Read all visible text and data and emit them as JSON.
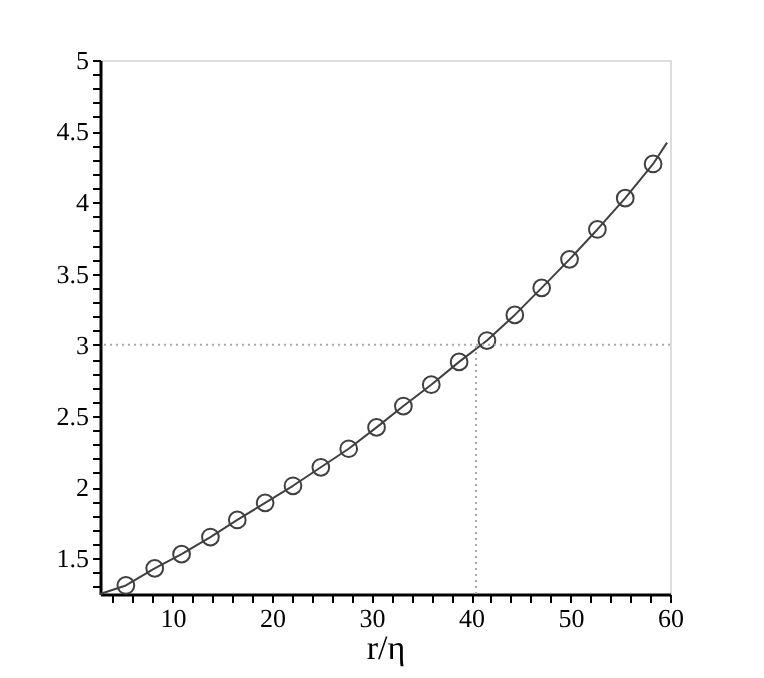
{
  "chart_data": {
    "type": "line",
    "xlabel": "r/η",
    "xlim": [
      2.7,
      60
    ],
    "ylim": [
      1.25,
      5
    ],
    "xticks": [
      {
        "value": 4,
        "label": null
      },
      {
        "value": 6,
        "label": null
      },
      {
        "value": 8,
        "label": null
      },
      10,
      {
        "value": 12,
        "label": null
      },
      {
        "value": 14,
        "label": null
      },
      {
        "value": 16,
        "label": null
      },
      {
        "value": 18,
        "label": null
      },
      20,
      {
        "value": 22,
        "label": null
      },
      {
        "value": 24,
        "label": null
      },
      {
        "value": 26,
        "label": null
      },
      {
        "value": 28,
        "label": null
      },
      30,
      {
        "value": 32,
        "label": null
      },
      {
        "value": 34,
        "label": null
      },
      {
        "value": 36,
        "label": null
      },
      {
        "value": 38,
        "label": null
      },
      40,
      {
        "value": 42,
        "label": null
      },
      {
        "value": 44,
        "label": null
      },
      {
        "value": 46,
        "label": null
      },
      {
        "value": 48,
        "label": null
      },
      50,
      {
        "value": 52,
        "label": null
      },
      {
        "value": 54,
        "label": null
      },
      {
        "value": 56,
        "label": null
      },
      {
        "value": 58,
        "label": null
      },
      60
    ],
    "yticks": [
      {
        "value": 1.3,
        "label": null
      },
      {
        "value": 1.4,
        "label": null
      },
      1.5,
      {
        "value": 1.6,
        "label": null
      },
      {
        "value": 1.7,
        "label": null
      },
      {
        "value": 1.8,
        "label": null
      },
      {
        "value": 1.9,
        "label": null
      },
      2,
      {
        "value": 2.1,
        "label": null
      },
      {
        "value": 2.2,
        "label": null
      },
      {
        "value": 2.3,
        "label": null
      },
      {
        "value": 2.4,
        "label": null
      },
      2.5,
      {
        "value": 2.6,
        "label": null
      },
      {
        "value": 2.7,
        "label": null
      },
      {
        "value": 2.8,
        "label": null
      },
      {
        "value": 2.9,
        "label": null
      },
      3,
      {
        "value": 3.1,
        "label": null
      },
      {
        "value": 3.2,
        "label": null
      },
      {
        "value": 3.3,
        "label": null
      },
      {
        "value": 3.4,
        "label": null
      },
      3.5,
      {
        "value": 3.6,
        "label": null
      },
      {
        "value": 3.7,
        "label": null
      },
      {
        "value": 3.8,
        "label": null
      },
      {
        "value": 3.9,
        "label": null
      },
      4,
      {
        "value": 4.1,
        "label": null
      },
      {
        "value": 4.2,
        "label": null
      },
      {
        "value": 4.3,
        "label": null
      },
      {
        "value": 4.4,
        "label": null
      },
      4.5,
      {
        "value": 4.6,
        "label": null
      },
      {
        "value": 4.7,
        "label": null
      },
      {
        "value": 4.8,
        "label": null
      },
      {
        "value": 4.9,
        "label": null
      },
      5
    ],
    "grid": false,
    "ref_lines": [
      {
        "axis": "y",
        "value": 3,
        "color": "#aaaaaa",
        "line_style": "dotted"
      },
      {
        "axis": "x",
        "value": 40.5,
        "color": "#aaaaaa",
        "line_style": "dotted"
      }
    ],
    "series": [
      {
        "marker": "none",
        "line_style": "solid",
        "color": "#404040",
        "x": [
          2.7,
          5.3,
          8.2,
          10.9,
          13.8,
          16.5,
          19.3,
          22.1,
          24.9,
          27.7,
          30.5,
          33.2,
          36.0,
          38.8,
          41.6,
          44.4,
          47.1,
          49.9,
          52.7,
          55.5,
          58.3,
          59.7
        ],
        "values": [
          1.25,
          1.31,
          1.43,
          1.53,
          1.65,
          1.77,
          1.89,
          2.01,
          2.14,
          2.27,
          2.42,
          2.57,
          2.72,
          2.88,
          3.03,
          3.21,
          3.4,
          3.6,
          3.81,
          4.03,
          4.27,
          4.42
        ]
      },
      {
        "type": "scatter",
        "marker": "circle",
        "color": "#404040",
        "x": [
          5.3,
          8.2,
          10.9,
          13.8,
          16.5,
          19.3,
          22.1,
          24.9,
          27.7,
          30.5,
          33.2,
          36.0,
          38.8,
          41.6,
          44.4,
          47.1,
          49.9,
          52.7,
          55.5,
          58.3
        ],
        "values": [
          1.31,
          1.43,
          1.53,
          1.65,
          1.77,
          1.89,
          2.01,
          2.14,
          2.27,
          2.42,
          2.57,
          2.72,
          2.88,
          3.03,
          3.21,
          3.4,
          3.6,
          3.81,
          4.03,
          4.27
        ]
      }
    ]
  }
}
